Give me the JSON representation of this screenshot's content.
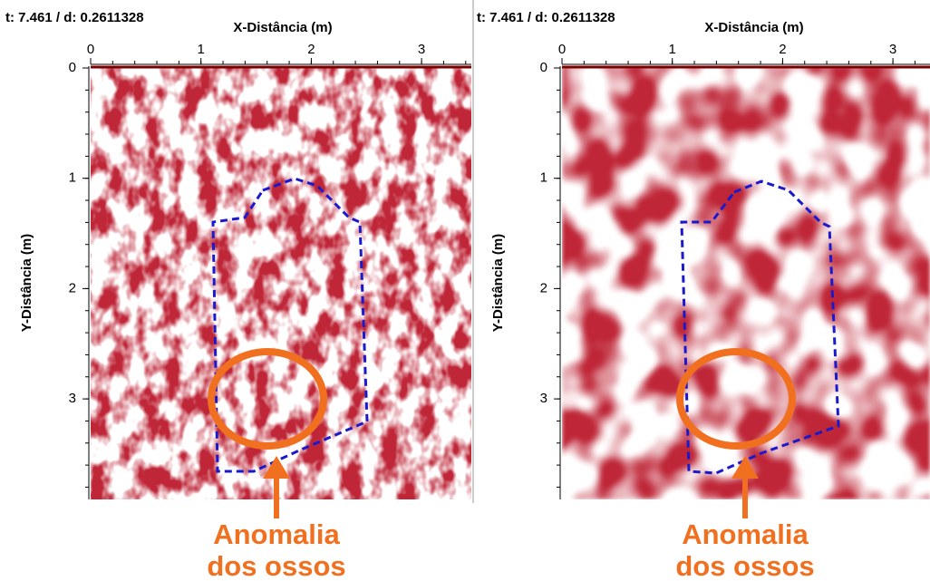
{
  "panels": [
    {
      "header": "t: 7.461 / d: 0.2611328",
      "x_label": "X-Distância (m)",
      "y_label": "Y-Distância (m)",
      "x_ticks": [
        0,
        1,
        2,
        3
      ],
      "y_ticks": [
        0,
        1,
        2,
        3
      ],
      "annotation": [
        "Anomalia",
        "dos ossos"
      ]
    },
    {
      "header": "t: 7.461 / d: 0.2611328",
      "x_label": "X-Distância (m)",
      "y_label": "Y-Distância (m)",
      "x_ticks": [
        0,
        1,
        2,
        3
      ],
      "y_ticks": [
        0,
        1,
        2,
        3
      ],
      "annotation": [
        "Anomalia",
        "dos ossos"
      ]
    }
  ]
}
